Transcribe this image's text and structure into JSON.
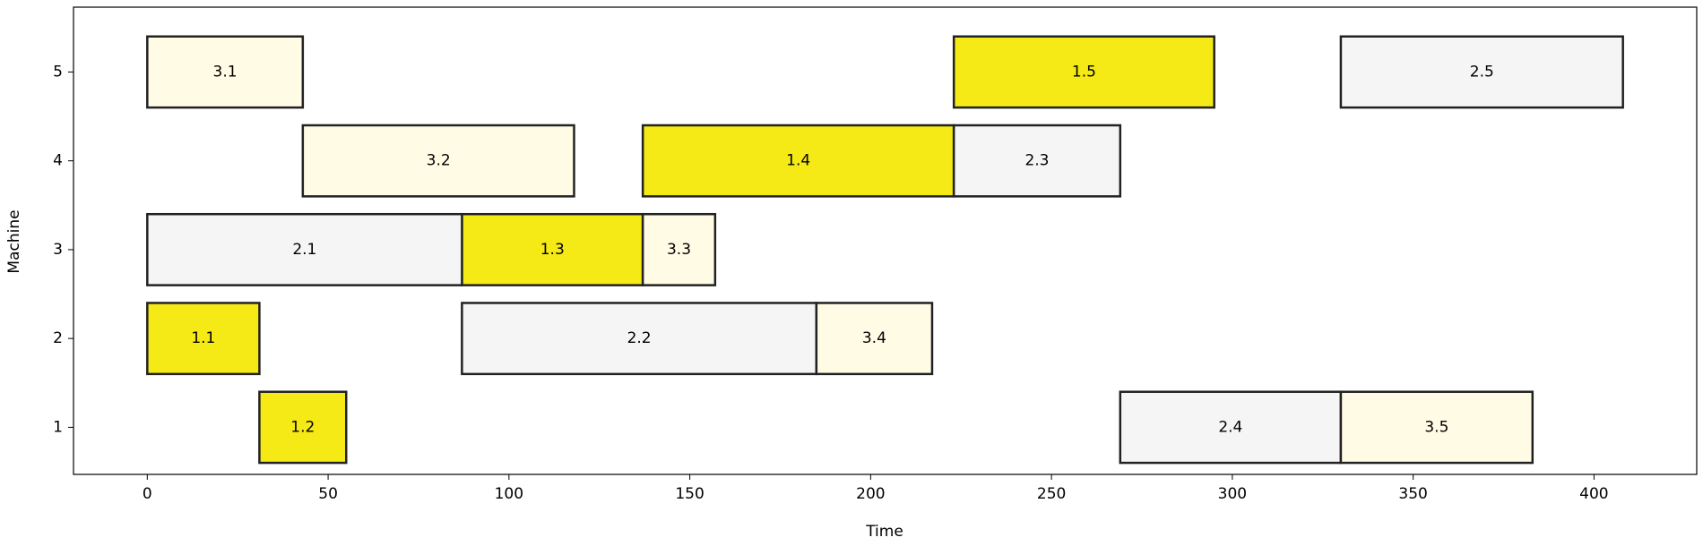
{
  "chart_data": {
    "type": "gantt",
    "xlabel": "Time",
    "ylabel": "Machine",
    "xlim": [
      -20.4,
      428.4
    ],
    "xticks": [
      0,
      50,
      100,
      150,
      200,
      250,
      300,
      350,
      400
    ],
    "ylim": [
      0.47,
      5.73
    ],
    "yticks": [
      1,
      2,
      3,
      4,
      5
    ],
    "tasks": [
      {
        "label": "1.1",
        "machine": 2,
        "start": 0,
        "end": 31,
        "color": "#f5e916"
      },
      {
        "label": "1.2",
        "machine": 1,
        "start": 31,
        "end": 55,
        "color": "#f5e916"
      },
      {
        "label": "1.3",
        "machine": 3,
        "start": 87,
        "end": 137,
        "color": "#f5e916"
      },
      {
        "label": "1.4",
        "machine": 4,
        "start": 137,
        "end": 223,
        "color": "#f5e916"
      },
      {
        "label": "1.5",
        "machine": 5,
        "start": 223,
        "end": 295,
        "color": "#f5e916"
      },
      {
        "label": "2.1",
        "machine": 3,
        "start": 0,
        "end": 87,
        "color": "#f5f5f5"
      },
      {
        "label": "2.2",
        "machine": 2,
        "start": 87,
        "end": 185,
        "color": "#f5f5f5"
      },
      {
        "label": "2.3",
        "machine": 4,
        "start": 223,
        "end": 269,
        "color": "#f5f5f5"
      },
      {
        "label": "2.4",
        "machine": 1,
        "start": 269,
        "end": 330,
        "color": "#f5f5f5"
      },
      {
        "label": "2.5",
        "machine": 5,
        "start": 330,
        "end": 408,
        "color": "#f5f5f5"
      },
      {
        "label": "3.1",
        "machine": 5,
        "start": 0,
        "end": 43,
        "color": "#fffbe5"
      },
      {
        "label": "3.2",
        "machine": 4,
        "start": 43,
        "end": 118,
        "color": "#fffbe5"
      },
      {
        "label": "3.3",
        "machine": 3,
        "start": 137,
        "end": 157,
        "color": "#fffbe5"
      },
      {
        "label": "3.4",
        "machine": 2,
        "start": 185,
        "end": 217,
        "color": "#fffbe5"
      },
      {
        "label": "3.5",
        "machine": 1,
        "start": 330,
        "end": 383,
        "color": "#fffbe5"
      }
    ]
  }
}
